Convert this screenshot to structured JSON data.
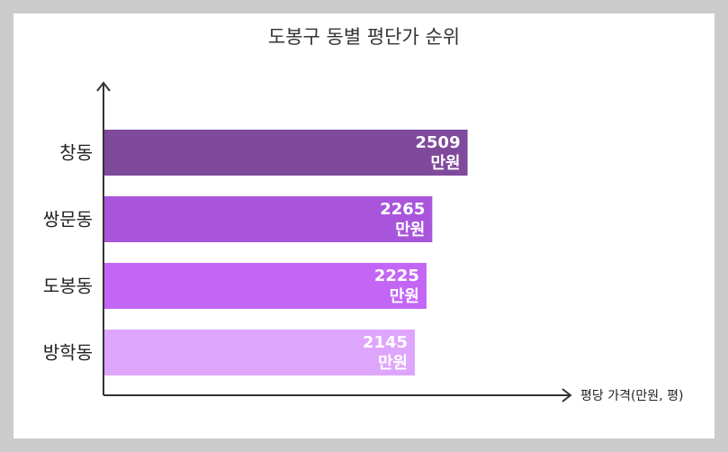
{
  "chart_data": {
    "type": "bar",
    "orientation": "horizontal",
    "title": "도봉구 동별 평단가 순위",
    "xlabel": "평당 가격(만원, 평)",
    "ylabel": "",
    "categories": [
      "창동",
      "쌍문동",
      "도봉동",
      "방학동"
    ],
    "values": [
      2509,
      2265,
      2225,
      2145
    ],
    "value_unit": "만원",
    "xlim": [
      0,
      3220
    ],
    "colors": [
      "#7f4a9c",
      "#a855dc",
      "#c466f5",
      "#dea5fd"
    ],
    "grid": false,
    "legend": "none"
  }
}
